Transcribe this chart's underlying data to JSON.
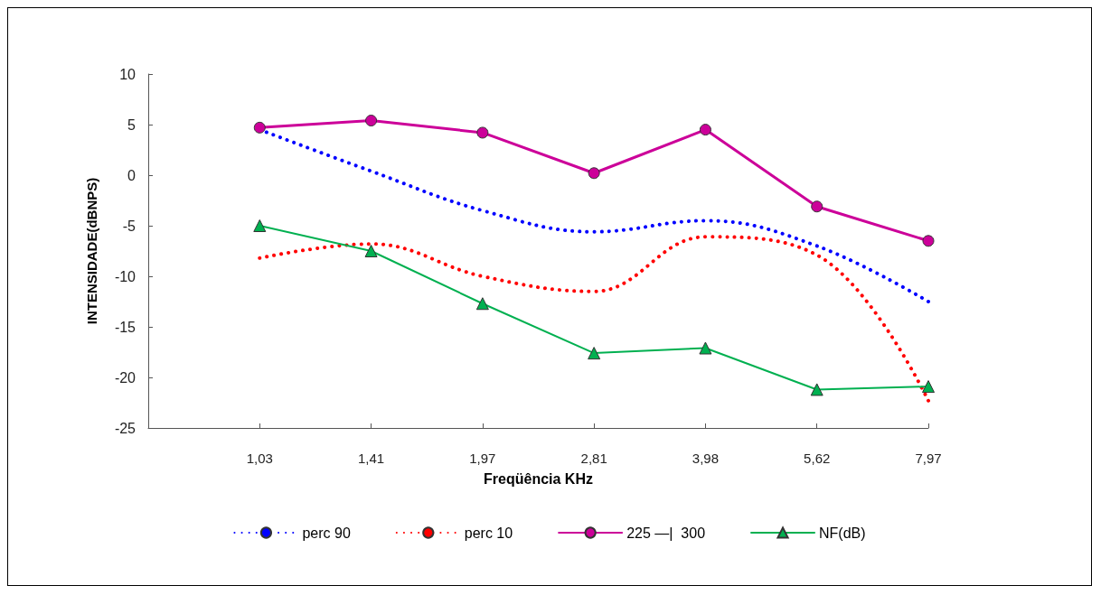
{
  "chart_data": {
    "type": "line",
    "xlabel": "Freqüência KHz",
    "ylabel": "INTENSIDADE(dBNPS)",
    "categories": [
      null,
      "1,03",
      "1,41",
      "1,97",
      "2,81",
      "3,98",
      "5,62",
      "7,97"
    ],
    "ylim": [
      -25,
      10
    ],
    "yticks": [
      -25,
      -20,
      -15,
      -10,
      -5,
      0,
      5,
      10
    ],
    "grid": false,
    "legend": "bottom",
    "series": [
      {
        "name": "perc 90",
        "color": "#0000ff",
        "line_style": "dotted",
        "marker": "none",
        "values": [
          null,
          4.5,
          0.4,
          -3.5,
          -5.6,
          -4.5,
          -7.0,
          -12.5
        ]
      },
      {
        "name": "perc 10",
        "color": "#ff0000",
        "line_style": "dotted",
        "marker": "none",
        "values": [
          null,
          -8.2,
          -6.8,
          -10.0,
          -11.5,
          -6.1,
          -7.9,
          -22.3
        ]
      },
      {
        "name": "225 —|  300",
        "color": "#cc0099",
        "line_style": "solid",
        "marker": "circle",
        "values": [
          null,
          4.7,
          5.4,
          4.2,
          0.2,
          4.5,
          -3.1,
          -6.5
        ]
      },
      {
        "name": "NF(dB)",
        "color": "#00b050",
        "line_style": "solid",
        "marker": "triangle",
        "values": [
          null,
          -5.0,
          -7.5,
          -12.7,
          -17.6,
          -17.1,
          -21.2,
          -20.9
        ]
      }
    ]
  }
}
